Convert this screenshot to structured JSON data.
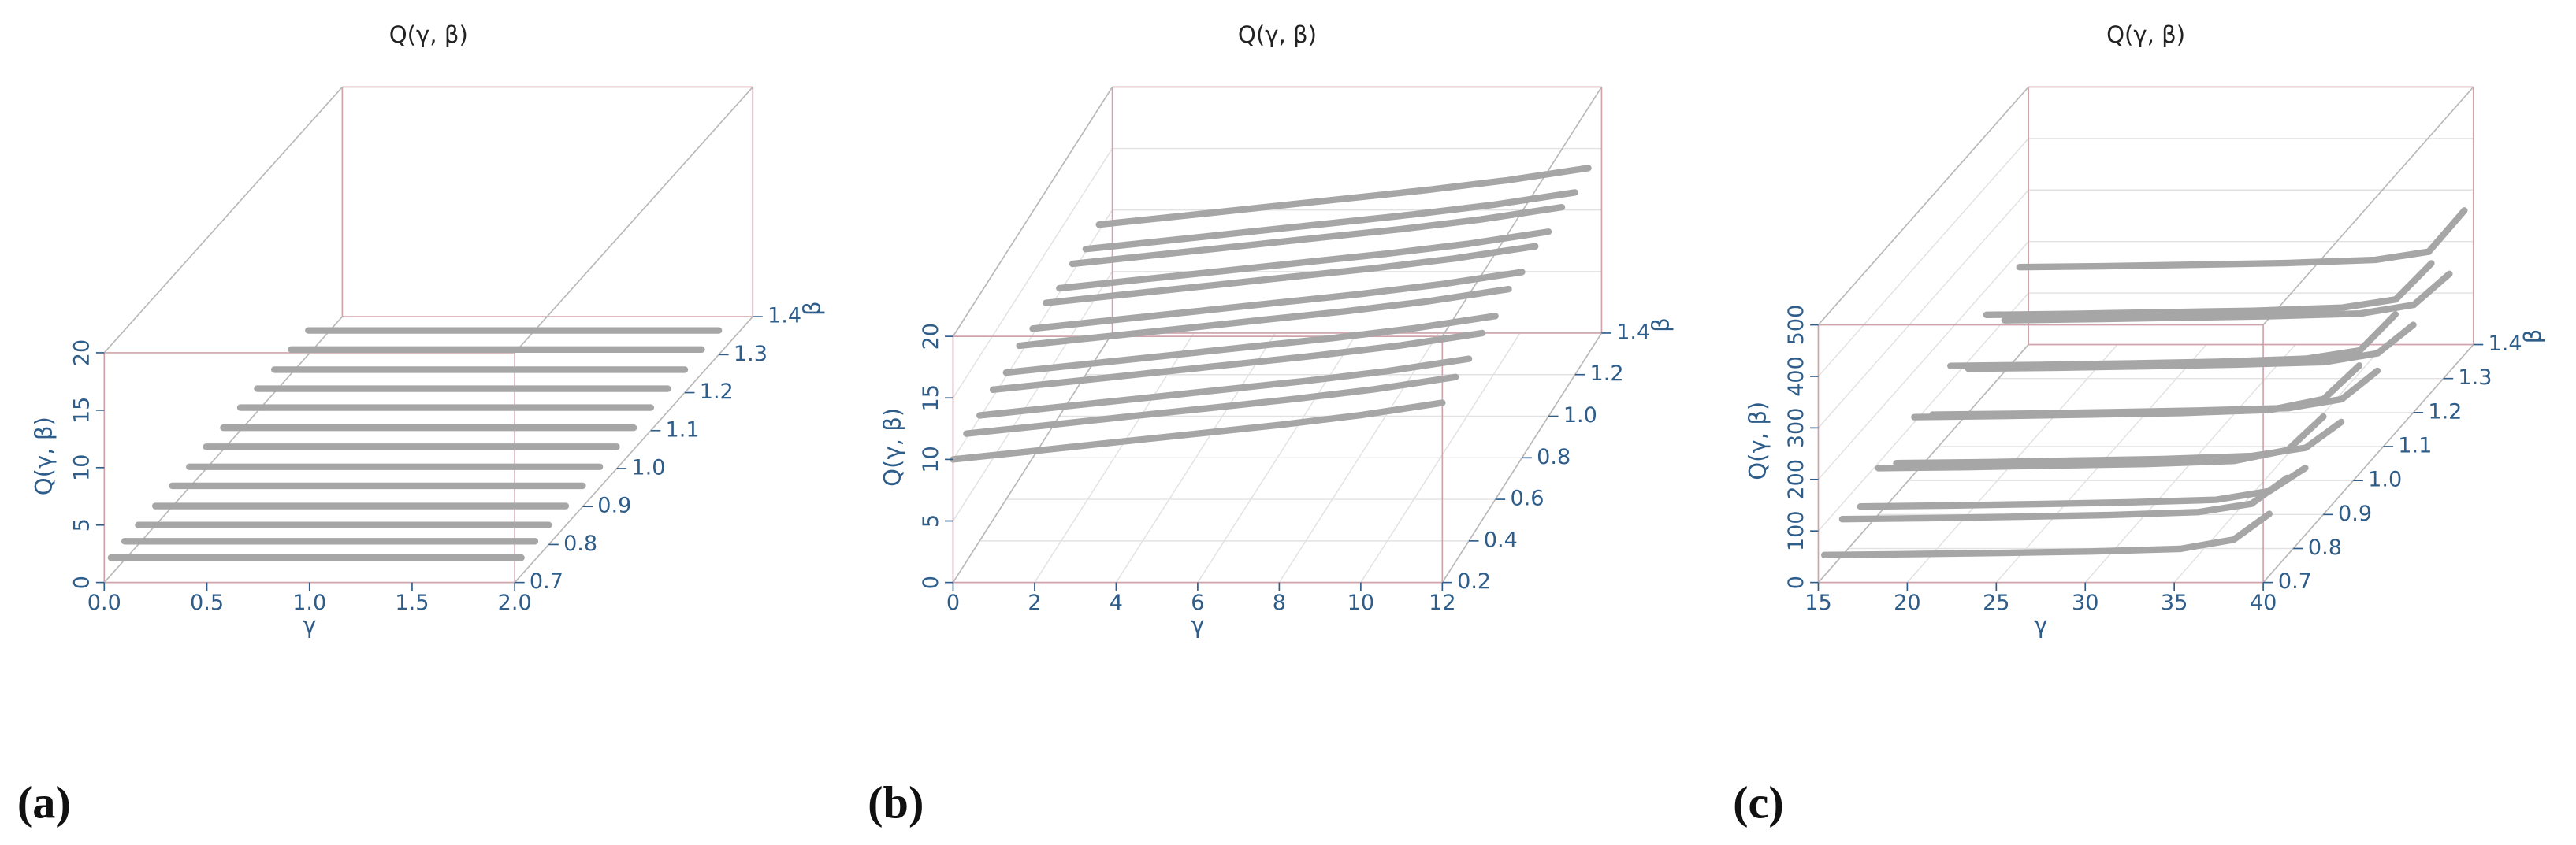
{
  "chart_data": [
    {
      "type": "line3d",
      "label": "(a)",
      "title": "Q(γ, β)",
      "xlabel": "γ",
      "ylabel": "β",
      "zlabel": "Q(γ, β)",
      "grid": false,
      "color": "#a6a6a6",
      "xlim": [
        0,
        2
      ],
      "xticks": [
        {
          "value": 0,
          "label": "0.0"
        },
        0.5,
        {
          "value": 1,
          "label": "1.0"
        },
        1.5,
        {
          "value": 2,
          "label": "2.0"
        }
      ],
      "ylim": [
        0.7,
        1.4
      ],
      "yticks": [
        0.7,
        0.8,
        0.9,
        {
          "value": 1,
          "label": "1.0"
        },
        1.1,
        1.2,
        1.3,
        1.4
      ],
      "zlim": [
        0,
        20
      ],
      "zticks": [
        0,
        5,
        10,
        15,
        20
      ],
      "x": [
        0,
        0.5,
        1,
        1.5,
        2
      ],
      "series": [
        {
          "beta": 0.72,
          "values": [
            1.5,
            1.5,
            1.5,
            1.5,
            1.5
          ]
        },
        {
          "beta": 0.76,
          "values": [
            1.6,
            1.6,
            1.6,
            1.6,
            1.6
          ]
        },
        {
          "beta": 0.8,
          "values": [
            1.7,
            1.7,
            1.7,
            1.7,
            1.7
          ]
        },
        {
          "beta": 0.85,
          "values": [
            1.7,
            1.7,
            1.7,
            1.7,
            1.7
          ]
        },
        {
          "beta": 0.9,
          "values": [
            1.8,
            1.8,
            1.8,
            1.8,
            1.8
          ]
        },
        {
          "beta": 0.95,
          "values": [
            1.8,
            1.8,
            1.8,
            1.8,
            1.8
          ]
        },
        {
          "beta": 1.0,
          "values": [
            1.9,
            1.9,
            1.9,
            1.9,
            1.9
          ]
        },
        {
          "beta": 1.05,
          "values": [
            1.9,
            1.9,
            1.9,
            1.9,
            1.9
          ]
        },
        {
          "beta": 1.1,
          "values": [
            2.0,
            2.0,
            2.0,
            2.0,
            2.0
          ]
        },
        {
          "beta": 1.15,
          "values": [
            2.0,
            2.0,
            2.0,
            2.0,
            2.0
          ]
        },
        {
          "beta": 1.2,
          "values": [
            2.0,
            2.0,
            2.0,
            2.0,
            2.0
          ]
        },
        {
          "beta": 1.25,
          "values": [
            2.1,
            2.1,
            2.1,
            2.1,
            2.1
          ]
        },
        {
          "beta": 1.3,
          "values": [
            2.1,
            2.1,
            2.1,
            2.1,
            2.1
          ]
        }
      ]
    },
    {
      "type": "line3d",
      "label": "(b)",
      "title": "Q(γ, β)",
      "xlabel": "γ",
      "ylabel": "β",
      "zlabel": "Q(γ, β)",
      "grid": true,
      "color": "#a6a6a6",
      "xlim": [
        0,
        12
      ],
      "xticks": [
        0,
        2,
        4,
        6,
        8,
        10,
        12
      ],
      "ylim": [
        0.2,
        1.4
      ],
      "yticks": [
        0.2,
        0.4,
        0.6,
        0.8,
        {
          "value": 1,
          "label": "1.0"
        },
        1.2,
        1.4
      ],
      "zlim": [
        0,
        20
      ],
      "zticks": [
        0,
        5,
        10,
        15,
        20
      ],
      "x": [
        0,
        2,
        4,
        6,
        8,
        10,
        12
      ],
      "series": [
        {
          "beta": 0.2,
          "values": [
            10.0,
            10.7,
            11.4,
            12.1,
            12.8,
            13.6,
            14.6
          ]
        },
        {
          "beta": 0.3,
          "values": [
            10.4,
            11.1,
            11.8,
            12.5,
            13.2,
            14.0,
            15.0
          ]
        },
        {
          "beta": 0.4,
          "values": [
            10.2,
            10.9,
            11.6,
            12.3,
            13.0,
            13.8,
            14.8
          ]
        },
        {
          "beta": 0.5,
          "values": [
            10.6,
            11.3,
            12.0,
            12.7,
            13.4,
            14.2,
            15.2
          ]
        },
        {
          "beta": 0.6,
          "values": [
            10.3,
            11.0,
            11.7,
            12.4,
            13.1,
            13.9,
            14.9
          ]
        },
        {
          "beta": 0.7,
          "values": [
            10.8,
            11.5,
            12.2,
            12.9,
            13.6,
            14.4,
            15.4
          ]
        },
        {
          "beta": 0.8,
          "values": [
            10.5,
            11.2,
            11.9,
            12.6,
            13.3,
            14.1,
            15.1
          ]
        },
        {
          "beta": 0.9,
          "values": [
            10.9,
            11.6,
            12.3,
            13.0,
            13.7,
            14.5,
            15.5
          ]
        },
        {
          "beta": 1.0,
          "values": [
            10.4,
            11.1,
            11.8,
            12.5,
            13.2,
            14.0,
            15.0
          ]
        },
        {
          "beta": 1.1,
          "values": [
            10.7,
            11.4,
            12.1,
            12.8,
            13.5,
            14.3,
            15.3
          ]
        },
        {
          "beta": 1.2,
          "values": [
            10.2,
            10.9,
            11.6,
            12.3,
            13.0,
            13.8,
            14.8
          ]
        },
        {
          "beta": 1.3,
          "values": [
            10.5,
            11.2,
            11.9,
            12.6,
            13.3,
            14.1,
            15.1
          ]
        }
      ]
    },
    {
      "type": "line3d",
      "label": "(c)",
      "title": "Q(γ, β)",
      "xlabel": "γ",
      "ylabel": "β",
      "zlabel": "Q(γ, β)",
      "grid": true,
      "color": "#a6a6a6",
      "xlim": [
        15,
        40
      ],
      "xticks": [
        15,
        20,
        25,
        30,
        35,
        40
      ],
      "ylim": [
        0.7,
        1.4
      ],
      "yticks": [
        0.7,
        0.8,
        0.9,
        {
          "value": 1,
          "label": "1.0"
        },
        1.1,
        1.2,
        1.3,
        1.4
      ],
      "zlim": [
        0,
        500
      ],
      "zticks": [
        0,
        100,
        200,
        300,
        400,
        500
      ],
      "x": [
        15,
        20,
        25,
        30,
        35,
        38,
        40
      ],
      "series": [
        {
          "beta": 0.72,
          "values": [
            40,
            42,
            44,
            47,
            52,
            70,
            120
          ]
        },
        {
          "beta": 0.78,
          "values": [
            70,
            72,
            75,
            78,
            84,
            100,
            150
          ]
        },
        {
          "beta": 0.84,
          "values": [
            55,
            57,
            60,
            63,
            68,
            85,
            130
          ]
        },
        {
          "beta": 0.9,
          "values": [
            90,
            92,
            95,
            98,
            104,
            125,
            190
          ]
        },
        {
          "beta": 0.96,
          "values": [
            60,
            62,
            65,
            68,
            74,
            90,
            140
          ]
        },
        {
          "beta": 1.02,
          "values": [
            110,
            112,
            115,
            118,
            124,
            145,
            210
          ]
        },
        {
          "beta": 1.08,
          "values": [
            75,
            77,
            80,
            83,
            88,
            105,
            160
          ]
        },
        {
          "beta": 1.14,
          "values": [
            130,
            132,
            135,
            138,
            144,
            160,
            230
          ]
        },
        {
          "beta": 1.2,
          "values": [
            85,
            87,
            90,
            93,
            98,
            115,
            170
          ]
        },
        {
          "beta": 1.26,
          "values": [
            150,
            152,
            155,
            158,
            164,
            180,
            250
          ]
        },
        {
          "beta": 1.32,
          "values": [
            100,
            102,
            105,
            108,
            113,
            130,
            190
          ]
        },
        {
          "beta": 1.37,
          "values": [
            170,
            172,
            175,
            178,
            184,
            200,
            280
          ]
        }
      ]
    }
  ]
}
